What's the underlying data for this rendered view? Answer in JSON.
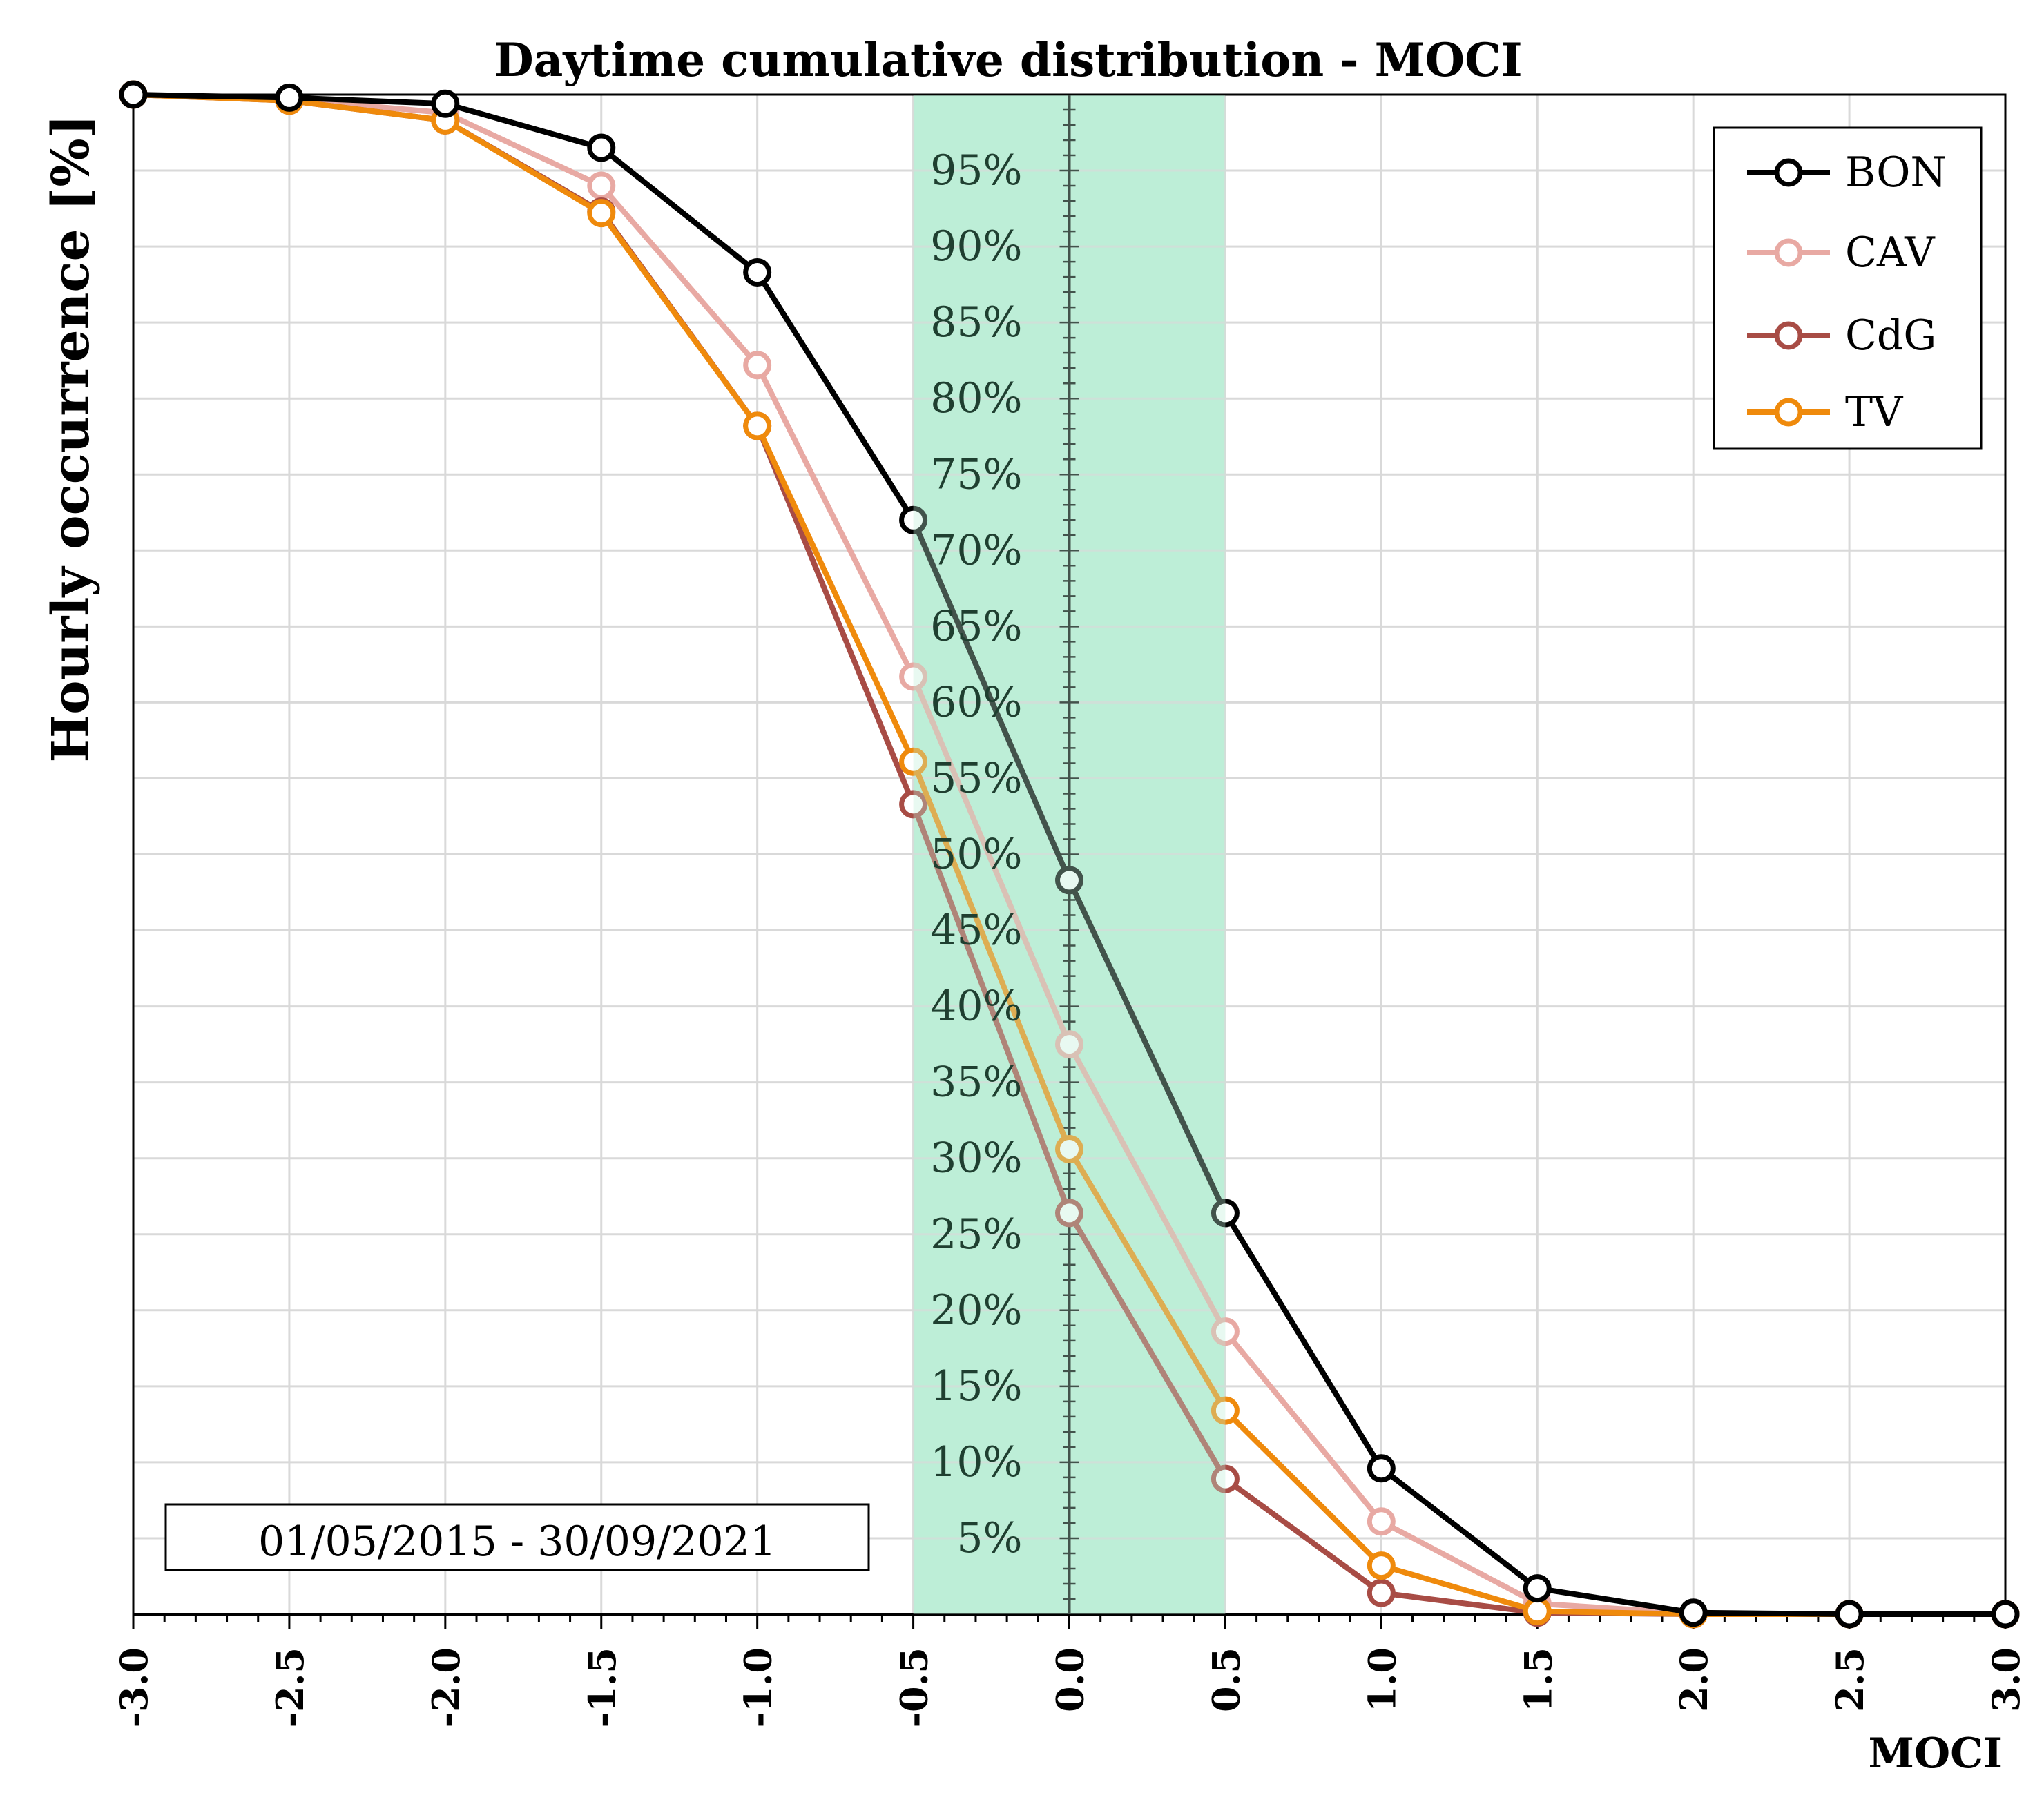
{
  "chart_data": {
    "type": "line",
    "title": "Daytime cumulative distribution - MOCI",
    "xlabel": "MOCI",
    "ylabel": "Hourly occurrence [%]",
    "xlim": [
      -3.0,
      3.0
    ],
    "ylim": [
      0,
      100
    ],
    "x": [
      -3.0,
      -2.5,
      -2.0,
      -1.5,
      -1.0,
      -0.5,
      0.0,
      0.5,
      1.0,
      1.5,
      2.0,
      2.5,
      3.0
    ],
    "x_tick_labels": [
      "-3.0",
      "-2.5",
      "-2.0",
      "-1.5",
      "-1.0",
      "-0.5",
      "0.0",
      "0.5",
      "1.0",
      "1.5",
      "2.0",
      "2.5",
      "3.0"
    ],
    "y_tick_labels": [
      "5%",
      "10%",
      "15%",
      "20%",
      "25%",
      "30%",
      "35%",
      "40%",
      "45%",
      "50%",
      "55%",
      "60%",
      "65%",
      "70%",
      "75%",
      "80%",
      "85%",
      "90%",
      "95%"
    ],
    "y_ticks": [
      5,
      10,
      15,
      20,
      25,
      30,
      35,
      40,
      45,
      50,
      55,
      60,
      65,
      70,
      75,
      80,
      85,
      90,
      95
    ],
    "grid": true,
    "highlight_band": {
      "x_from": -0.5,
      "x_to": 0.5,
      "color": "#bdeed8"
    },
    "legend_position": "top-right",
    "series": [
      {
        "name": "BON",
        "color": "#000000",
        "values": [
          100,
          99.8,
          99.4,
          96.5,
          88.3,
          72.0,
          48.3,
          26.4,
          9.6,
          1.7,
          0.1,
          0.0,
          0.0
        ]
      },
      {
        "name": "CAV",
        "color": "#e8a9a3",
        "values": [
          100,
          99.7,
          98.8,
          94.0,
          82.2,
          61.7,
          37.5,
          18.6,
          6.1,
          0.7,
          0.05,
          0.0,
          0.0
        ]
      },
      {
        "name": "CdG",
        "color": "#a84c45",
        "values": [
          100,
          99.6,
          98.3,
          92.3,
          78.2,
          53.3,
          26.4,
          8.9,
          1.4,
          0.1,
          0.0,
          0.0,
          0.0
        ]
      },
      {
        "name": "TV",
        "color": "#ef8a0c",
        "values": [
          100,
          99.6,
          98.3,
          92.2,
          78.2,
          56.1,
          30.6,
          13.4,
          3.2,
          0.2,
          0.0,
          0.0,
          0.0
        ]
      }
    ],
    "annotation": "01/05/2015 - 30/09/2021"
  }
}
